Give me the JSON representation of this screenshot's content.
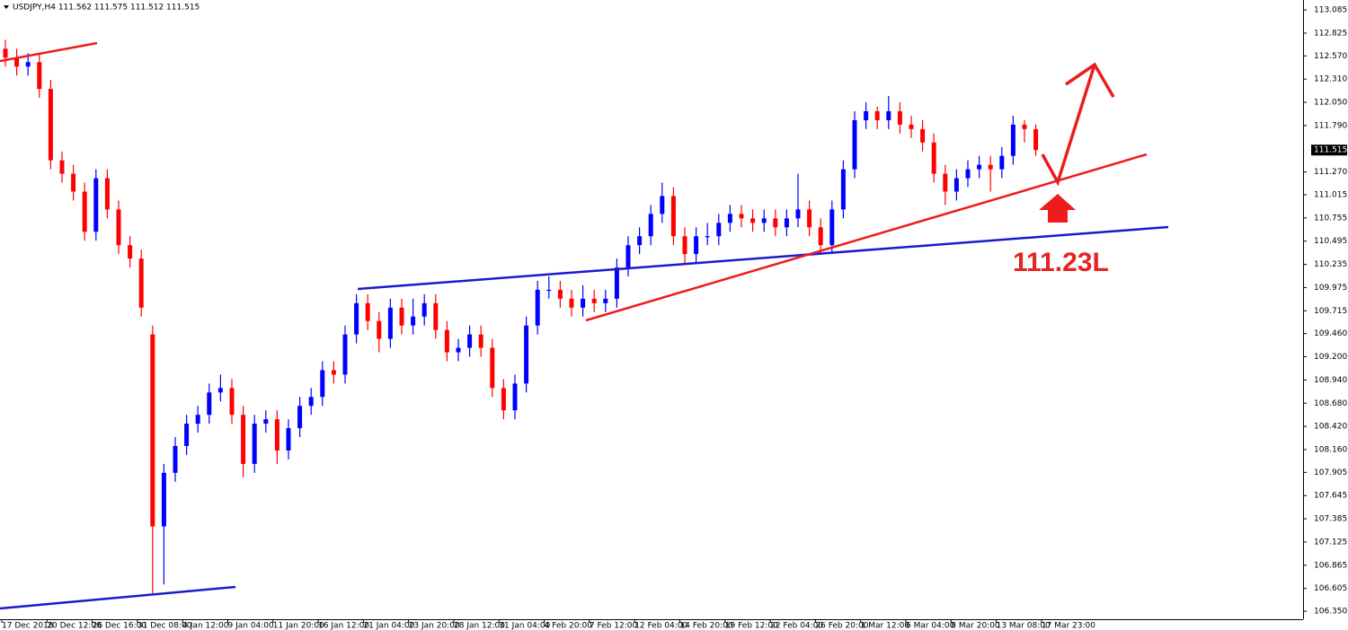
{
  "chart_data": {
    "type": "candlestick",
    "title": "USDJPY,H4  111.562 111.575 111.512 111.515",
    "categories": [
      "17 Dec 2018",
      "20 Dec 12:00",
      "26 Dec 16:00",
      "31 Dec 08:00",
      "4 Jan 12:00",
      "9 Jan 04:00",
      "11 Jan 20:00",
      "16 Jan 12:00",
      "21 Jan 04:00",
      "23 Jan 20:00",
      "28 Jan 12:00",
      "31 Jan 04:00",
      "4 Feb 20:00",
      "7 Feb 12:00",
      "12 Feb 04:00",
      "14 Feb 20:00",
      "19 Feb 12:00",
      "22 Feb 04:00",
      "26 Feb 20:00",
      "1 Mar 12:00",
      "6 Mar 04:00",
      "8 Mar 20:00",
      "13 Mar 08:00",
      "17 Mar 23:00"
    ],
    "color_up": "#0000ff",
    "color_down": "#ff0000",
    "open": [
      112.65,
      112.55,
      112.45,
      112.5,
      112.2,
      111.4,
      111.25,
      111.05,
      110.6,
      111.2,
      110.85,
      110.45,
      110.3,
      109.45,
      107.3,
      107.9,
      108.2,
      108.45,
      108.55,
      108.8,
      108.85,
      108.55,
      108.0,
      108.45,
      108.5,
      108.15,
      108.4,
      108.65,
      108.75,
      109.05,
      109.0,
      109.45,
      109.8,
      109.6,
      109.4,
      109.75,
      109.55,
      109.65,
      109.8,
      109.5,
      109.25,
      109.3,
      109.45,
      109.3,
      108.85,
      108.6,
      108.9,
      109.55,
      109.95,
      109.95,
      109.85,
      109.75,
      109.85,
      109.8,
      109.85,
      110.2,
      110.45,
      110.55,
      110.8,
      111.0,
      110.55,
      110.35,
      110.55,
      110.55,
      110.7,
      110.8,
      110.75,
      110.7,
      110.75,
      110.65,
      110.75,
      110.85,
      110.65,
      110.45,
      110.85,
      111.3,
      111.85,
      111.95,
      111.85,
      111.95,
      111.8,
      111.75,
      111.6,
      111.25,
      111.05,
      111.2,
      111.3,
      111.35,
      111.3,
      111.45,
      111.8,
      111.75
    ],
    "high": [
      112.75,
      112.65,
      112.6,
      112.6,
      112.3,
      111.5,
      111.35,
      111.15,
      111.3,
      111.3,
      110.95,
      110.55,
      110.4,
      109.55,
      108.0,
      108.3,
      108.55,
      108.65,
      108.9,
      109.0,
      108.95,
      108.65,
      108.55,
      108.6,
      108.6,
      108.5,
      108.75,
      108.85,
      109.15,
      109.15,
      109.55,
      109.9,
      109.9,
      109.7,
      109.85,
      109.85,
      109.85,
      109.9,
      109.9,
      109.6,
      109.4,
      109.55,
      109.55,
      109.4,
      108.95,
      109.0,
      109.65,
      110.05,
      110.1,
      110.05,
      109.95,
      110.0,
      109.95,
      109.95,
      110.3,
      110.55,
      110.65,
      110.9,
      111.15,
      111.1,
      110.65,
      110.65,
      110.7,
      110.8,
      110.9,
      110.9,
      110.85,
      110.85,
      110.85,
      110.85,
      111.25,
      110.95,
      110.75,
      110.95,
      111.4,
      111.95,
      112.05,
      112.0,
      112.12,
      112.05,
      111.9,
      111.85,
      111.7,
      111.35,
      111.3,
      111.4,
      111.45,
      111.45,
      111.55,
      111.9,
      111.85,
      111.8
    ],
    "low": [
      112.45,
      112.35,
      112.35,
      112.1,
      111.3,
      111.15,
      110.95,
      110.5,
      110.5,
      110.75,
      110.35,
      110.2,
      109.65,
      106.55,
      106.65,
      107.8,
      108.1,
      108.35,
      108.45,
      108.7,
      108.45,
      107.85,
      107.9,
      108.35,
      108.0,
      108.05,
      108.3,
      108.55,
      108.65,
      108.9,
      108.9,
      109.35,
      109.5,
      109.25,
      109.3,
      109.45,
      109.45,
      109.55,
      109.4,
      109.15,
      109.15,
      109.2,
      109.2,
      108.75,
      108.5,
      108.5,
      108.8,
      109.45,
      109.85,
      109.75,
      109.65,
      109.65,
      109.7,
      109.7,
      109.75,
      110.1,
      110.35,
      110.45,
      110.7,
      110.45,
      110.25,
      110.25,
      110.45,
      110.45,
      110.6,
      110.65,
      110.6,
      110.6,
      110.55,
      110.55,
      110.65,
      110.55,
      110.35,
      110.35,
      110.75,
      111.2,
      111.75,
      111.75,
      111.75,
      111.7,
      111.65,
      111.5,
      111.15,
      110.9,
      110.95,
      111.1,
      111.2,
      111.05,
      111.2,
      111.35,
      111.6,
      111.45
    ],
    "close": [
      112.55,
      112.45,
      112.5,
      112.2,
      111.4,
      111.25,
      111.05,
      110.6,
      111.2,
      110.85,
      110.45,
      110.3,
      109.75,
      107.3,
      107.9,
      108.2,
      108.45,
      108.55,
      108.8,
      108.85,
      108.55,
      108.0,
      108.45,
      108.5,
      108.15,
      108.4,
      108.65,
      108.75,
      109.05,
      109.0,
      109.45,
      109.8,
      109.6,
      109.4,
      109.75,
      109.55,
      109.65,
      109.8,
      109.5,
      109.25,
      109.3,
      109.45,
      109.3,
      108.85,
      108.6,
      108.9,
      109.55,
      109.95,
      109.95,
      109.85,
      109.75,
      109.85,
      109.8,
      109.85,
      110.2,
      110.45,
      110.55,
      110.8,
      111.0,
      110.55,
      110.35,
      110.55,
      110.55,
      110.7,
      110.8,
      110.75,
      110.7,
      110.75,
      110.65,
      110.75,
      110.85,
      110.65,
      110.45,
      110.85,
      111.3,
      111.85,
      111.95,
      111.85,
      111.95,
      111.8,
      111.75,
      111.6,
      111.25,
      111.05,
      111.2,
      111.3,
      111.35,
      111.3,
      111.45,
      111.8,
      111.75,
      111.515
    ],
    "ylim": [
      106.26,
      113.196
    ],
    "yticks": [
      {
        "value": 113.085,
        "label": "113.085"
      },
      {
        "value": 112.825,
        "label": "112.825"
      },
      {
        "value": 112.57,
        "label": "112.570"
      },
      {
        "value": 112.31,
        "label": "112.310"
      },
      {
        "value": 112.05,
        "label": "112.050"
      },
      {
        "value": 111.79,
        "label": "111.790"
      },
      {
        "value": 111.27,
        "label": "111.270"
      },
      {
        "value": 111.015,
        "label": "111.015"
      },
      {
        "value": 110.755,
        "label": "110.755"
      },
      {
        "value": 110.495,
        "label": "110.495"
      },
      {
        "value": 110.235,
        "label": "110.235"
      },
      {
        "value": 109.975,
        "label": "109.975"
      },
      {
        "value": 109.715,
        "label": "109.715"
      },
      {
        "value": 109.46,
        "label": "109.460"
      },
      {
        "value": 109.2,
        "label": "109.200"
      },
      {
        "value": 108.94,
        "label": "108.940"
      },
      {
        "value": 108.68,
        "label": "108.680"
      },
      {
        "value": 108.42,
        "label": "108.420"
      },
      {
        "value": 108.16,
        "label": "108.160"
      },
      {
        "value": 107.905,
        "label": "107.905"
      },
      {
        "value": 107.645,
        "label": "107.645"
      },
      {
        "value": 107.385,
        "label": "107.385"
      },
      {
        "value": 107.125,
        "label": "107.125"
      },
      {
        "value": 106.865,
        "label": "106.865"
      },
      {
        "value": 106.605,
        "label": "106.605"
      },
      {
        "value": 106.35,
        "label": "106.350"
      }
    ],
    "current_price": {
      "value": 111.515,
      "label": "111.515"
    },
    "annotation": "111.23L"
  }
}
